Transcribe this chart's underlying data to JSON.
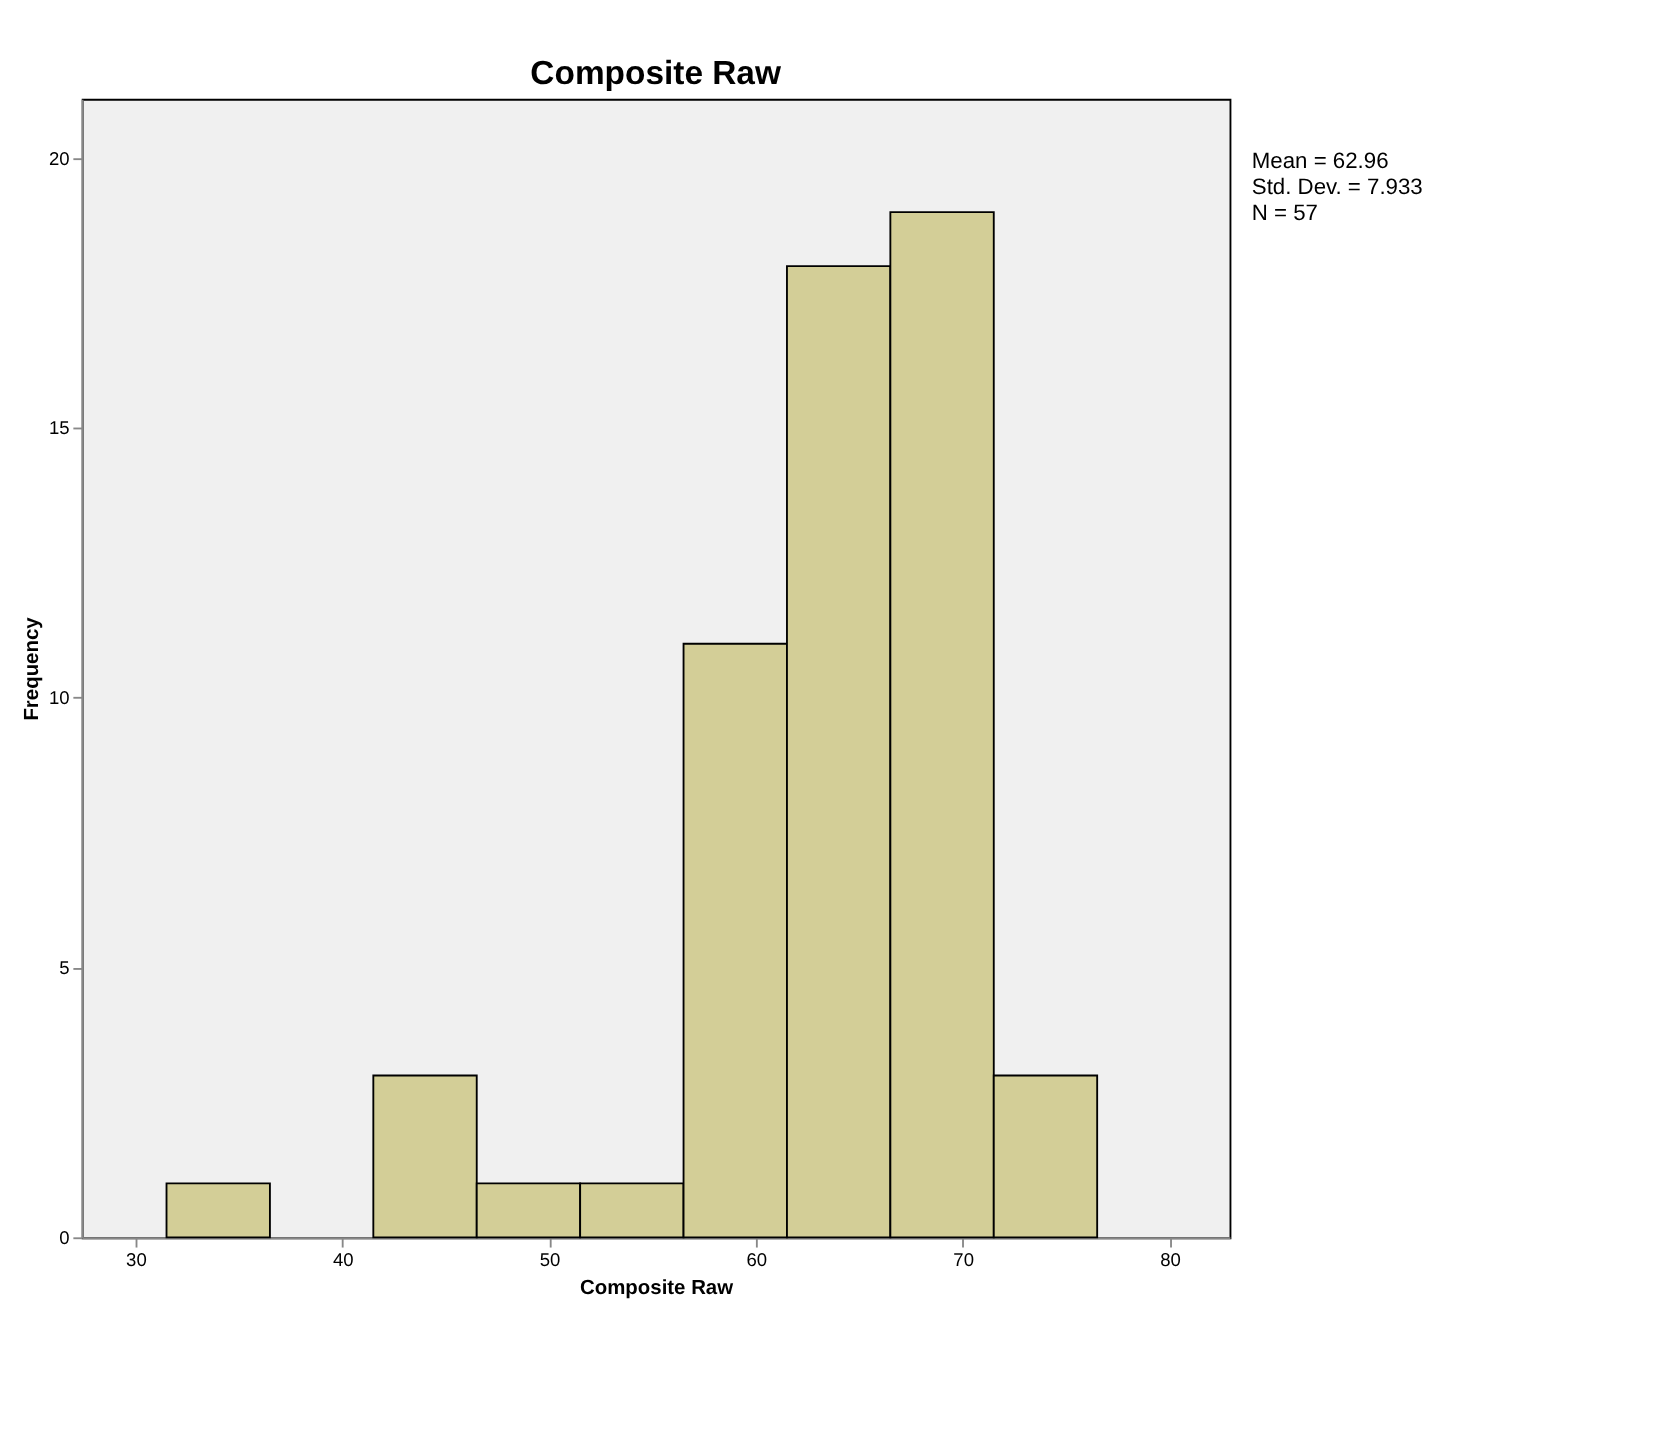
{
  "chart_data": {
    "type": "histogram",
    "title": "Composite Raw",
    "xlabel": "Composite Raw",
    "ylabel": "Frequency",
    "bins": [
      31.5,
      36.5,
      41.5,
      46.5,
      51.5,
      56.5,
      61.5,
      66.5,
      71.5,
      76.5
    ],
    "values": [
      1,
      0,
      3,
      1,
      1,
      11,
      18,
      19,
      3
    ],
    "color": "#d3ce97",
    "xlim": [
      27.4,
      82.9
    ],
    "xticks": [
      30,
      40,
      50,
      60,
      70,
      80
    ],
    "ylim": [
      0,
      21.1
    ],
    "yticks": [
      0,
      5,
      10,
      15,
      20
    ],
    "grid": false,
    "annotations": [
      "Mean = 62.96",
      "Std. Dev. = 7.933",
      "N = 57"
    ]
  }
}
